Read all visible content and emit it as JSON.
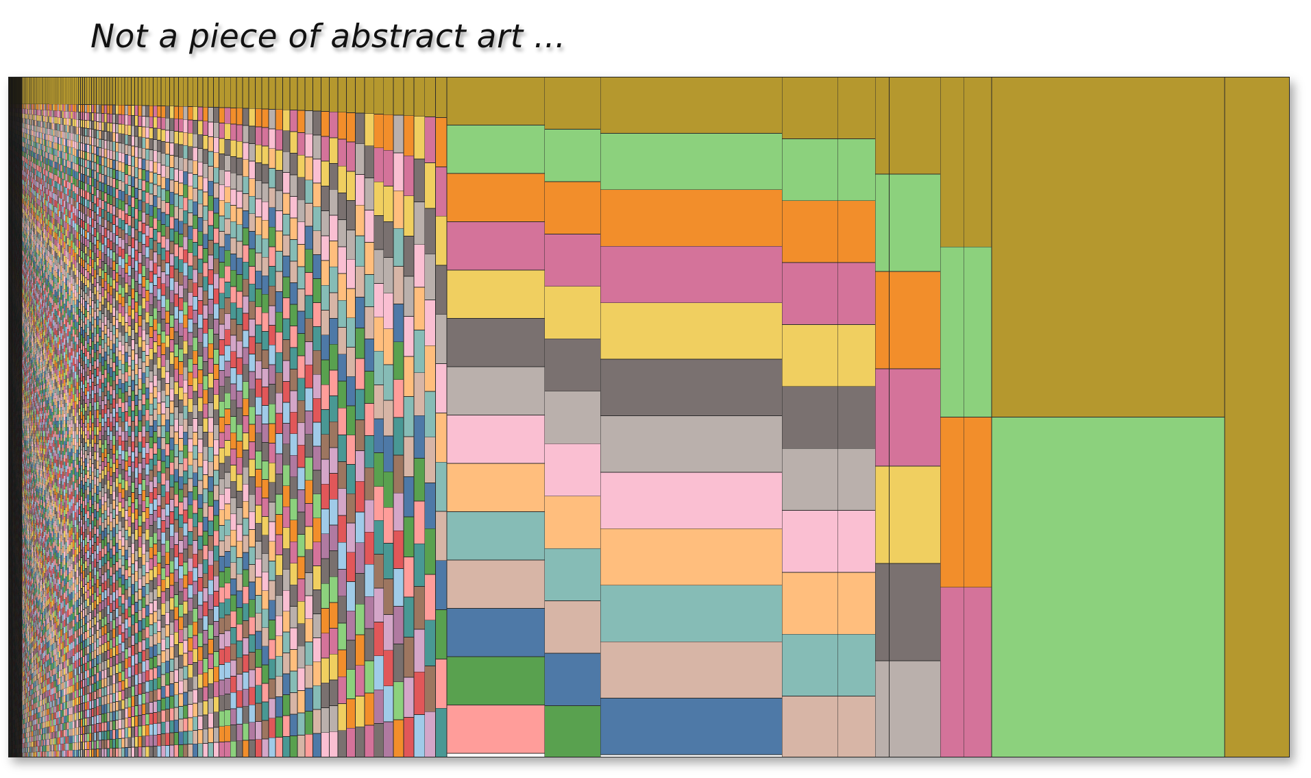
{
  "title": "Not a piece of abstract art ...",
  "chart_data": {
    "type": "mosaic",
    "title": "Not a piece of abstract art ...",
    "xlabel": "",
    "ylabel": "",
    "legend": "none",
    "grid": false,
    "category_colors": [
      "#b5982e",
      "#8cd17d",
      "#f28e2b",
      "#d4739a",
      "#f0cf60",
      "#7a7170",
      "#bab0ac",
      "#fabfd2",
      "#ffbe7d",
      "#86bcb6",
      "#d7b5a6",
      "#4e79a7",
      "#59a14f",
      "#ff9d9a",
      "#499894",
      "#9d7660",
      "#d4a6c8",
      "#e15759",
      "#a0cbe8",
      "#b07aa1",
      "#79706e"
    ],
    "right_columns": [
      {
        "width": 7.0,
        "segments": [
          1.0
        ]
      },
      {
        "width": 25.0,
        "segments": [
          0.5,
          0.5
        ]
      },
      {
        "width": 3.0,
        "segments": [
          0.25,
          0.25,
          0.25,
          0.25
        ]
      },
      {
        "width": 2.5,
        "segments": [
          0.25,
          0.25,
          0.25,
          0.25
        ]
      },
      {
        "width": 5.5,
        "segments": [
          0.143,
          0.143,
          0.143,
          0.143,
          0.143,
          0.143,
          0.143
        ]
      },
      {
        "width": 1.5,
        "segments": [
          0.143,
          0.143,
          0.143,
          0.143,
          0.143,
          0.143,
          0.143
        ]
      },
      {
        "width": 4.0,
        "segments": [
          0.091,
          0.091,
          0.091,
          0.091,
          0.091,
          0.091,
          0.091,
          0.091,
          0.091,
          0.091,
          0.091
        ]
      },
      {
        "width": 6.0,
        "segments": [
          0.091,
          0.091,
          0.091,
          0.091,
          0.091,
          0.091,
          0.091,
          0.091,
          0.091,
          0.091,
          0.091
        ]
      },
      {
        "width": 19.5,
        "segments": [
          0.083,
          0.083,
          0.083,
          0.083,
          0.083,
          0.083,
          0.083,
          0.083,
          0.083,
          0.083,
          0.083,
          0.083
        ]
      },
      {
        "width": 6.0,
        "segments": [
          0.077,
          0.077,
          0.077,
          0.077,
          0.077,
          0.077,
          0.077,
          0.077,
          0.077,
          0.077,
          0.077,
          0.077,
          0.077
        ]
      },
      {
        "width": 10.5,
        "segments": [
          0.071,
          0.071,
          0.071,
          0.071,
          0.071,
          0.071,
          0.071,
          0.071,
          0.071,
          0.071,
          0.071,
          0.071,
          0.071,
          0.071
        ]
      }
    ],
    "left_columns_note": "",
    "left_column_count": 150
  }
}
